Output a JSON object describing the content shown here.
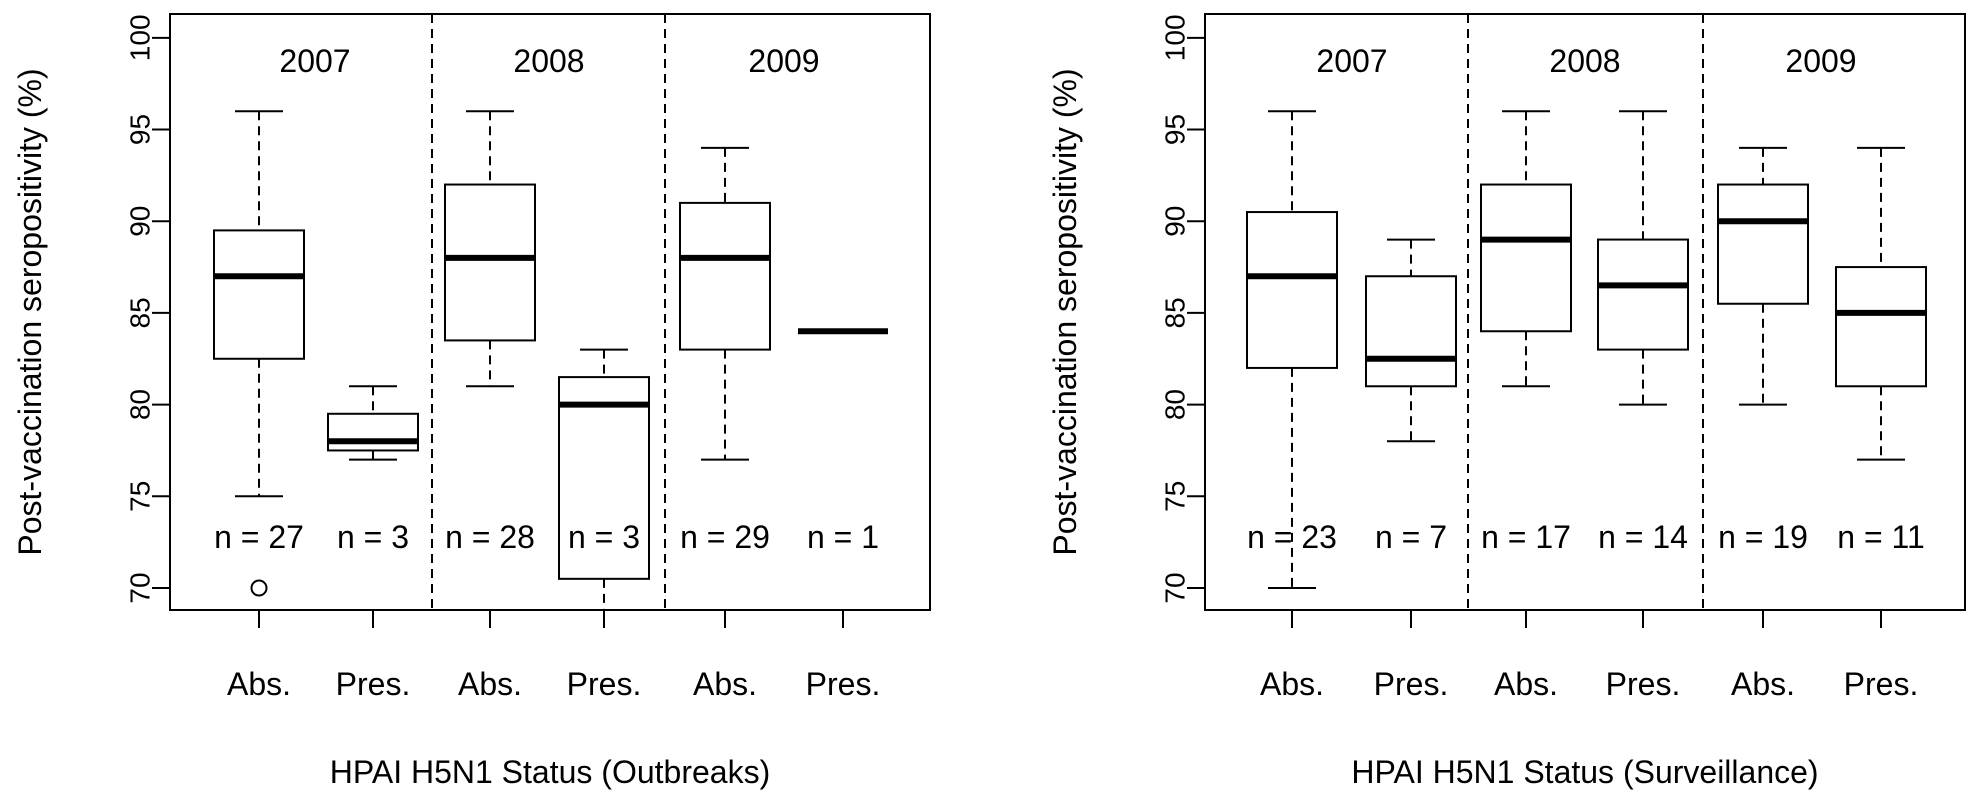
{
  "chart_data": [
    {
      "type": "boxplot",
      "xlabel": "HPAI H5N1 Status (Outbreaks)",
      "ylabel": "Post-vaccination seropositivity (%)",
      "ylim": [
        68.8,
        101.3
      ],
      "yticks": [
        "70",
        "75",
        "80",
        "85",
        "90",
        "95",
        "100"
      ],
      "year_labels": [
        "2007",
        "2008",
        "2009"
      ],
      "boxes": [
        {
          "category": "Abs.",
          "year": "2007",
          "whisker_low": 75,
          "q1": 82.5,
          "median": 87,
          "q3": 89.5,
          "whisker_high": 96,
          "outliers": [
            70
          ],
          "n_label": "n = 27"
        },
        {
          "category": "Pres.",
          "year": "2007",
          "whisker_low": 77,
          "q1": 77.5,
          "median": 78,
          "q3": 79.5,
          "whisker_high": 81,
          "outliers": [],
          "n_label": "n = 3"
        },
        {
          "category": "Abs.",
          "year": "2008",
          "whisker_low": 81,
          "q1": 83.5,
          "median": 88,
          "q3": 92,
          "whisker_high": 96,
          "outliers": [],
          "n_label": "n = 28"
        },
        {
          "category": "Pres.",
          "year": "2008",
          "whisker_low": 68.8,
          "q1": 70.5,
          "median": 80,
          "q3": 81.5,
          "whisker_high": 83,
          "outliers": [],
          "n_label": "n = 3"
        },
        {
          "category": "Abs.",
          "year": "2009",
          "whisker_low": 77,
          "q1": 83,
          "median": 88,
          "q3": 91,
          "whisker_high": 94,
          "outliers": [],
          "n_label": "n = 29"
        },
        {
          "category": "Pres.",
          "year": "2009",
          "whisker_low": 84,
          "q1": 84,
          "median": 84,
          "q3": 84,
          "whisker_high": 84,
          "outliers": [],
          "n_label": "n = 1"
        }
      ]
    },
    {
      "type": "boxplot",
      "xlabel": "HPAI H5N1 Status (Surveillance)",
      "ylabel": "Post-vaccination seropositivity (%)",
      "ylim": [
        68.8,
        101.3
      ],
      "yticks": [
        "70",
        "75",
        "80",
        "85",
        "90",
        "95",
        "100"
      ],
      "year_labels": [
        "2007",
        "2008",
        "2009"
      ],
      "boxes": [
        {
          "category": "Abs.",
          "year": "2007",
          "whisker_low": 70,
          "q1": 82,
          "median": 87,
          "q3": 90.5,
          "whisker_high": 96,
          "outliers": [],
          "n_label": "n = 23"
        },
        {
          "category": "Pres.",
          "year": "2007",
          "whisker_low": 78,
          "q1": 81,
          "median": 82.5,
          "q3": 87,
          "whisker_high": 89,
          "outliers": [],
          "n_label": "n = 7"
        },
        {
          "category": "Abs.",
          "year": "2008",
          "whisker_low": 81,
          "q1": 84,
          "median": 89,
          "q3": 92,
          "whisker_high": 96,
          "outliers": [],
          "n_label": "n = 17"
        },
        {
          "category": "Pres.",
          "year": "2008",
          "whisker_low": 80,
          "q1": 83,
          "median": 86.5,
          "q3": 89,
          "whisker_high": 96,
          "outliers": [],
          "n_label": "n = 14"
        },
        {
          "category": "Abs.",
          "year": "2009",
          "whisker_low": 80,
          "q1": 85.5,
          "median": 90,
          "q3": 92,
          "whisker_high": 94,
          "outliers": [],
          "n_label": "n = 19"
        },
        {
          "category": "Pres.",
          "year": "2009",
          "whisker_low": 77,
          "q1": 81,
          "median": 85,
          "q3": 87.5,
          "whisker_high": 94,
          "outliers": [],
          "n_label": "n = 11"
        }
      ]
    }
  ]
}
